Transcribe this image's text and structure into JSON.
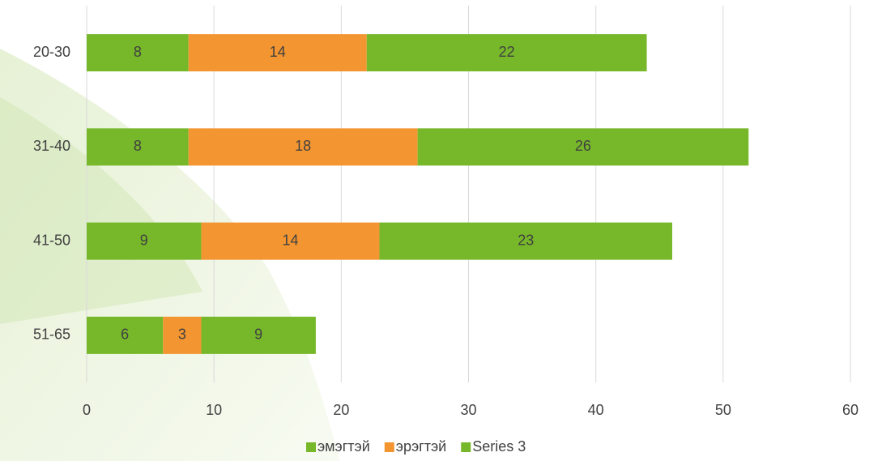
{
  "chart_data": {
    "type": "bar",
    "orientation": "horizontal",
    "stacked": true,
    "categories": [
      "20-30",
      "31-40",
      "41-50",
      "51-65"
    ],
    "series": [
      {
        "name": "эмэгтэй",
        "color": "#77b82a",
        "values": [
          8,
          8,
          9,
          6
        ]
      },
      {
        "name": "эрэгтэй",
        "color": "#f39530",
        "values": [
          14,
          18,
          14,
          3
        ]
      },
      {
        "name": "Series 3",
        "color": "#77b82a",
        "values": [
          22,
          26,
          23,
          9
        ]
      }
    ],
    "xlim": [
      0,
      60
    ],
    "xticks": [
      0,
      10,
      20,
      30,
      40,
      50,
      60
    ],
    "grid": true,
    "legend": "bottom"
  }
}
